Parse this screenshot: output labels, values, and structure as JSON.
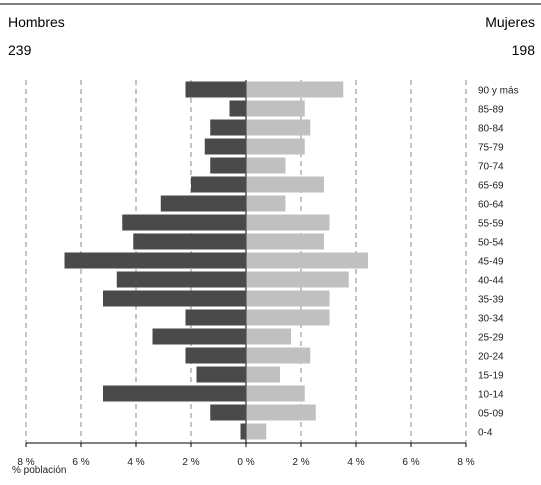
{
  "header": {
    "left_title": "Hombres",
    "left_total": "239",
    "right_title": "Mujeres",
    "right_total": "198"
  },
  "chart_data": {
    "type": "bar",
    "orientation": "horizontal-population-pyramid",
    "categories": [
      "90 y más",
      "85-89",
      "80-84",
      "75-79",
      "70-74",
      "65-69",
      "60-64",
      "55-59",
      "50-54",
      "45-49",
      "40-44",
      "35-39",
      "30-34",
      "25-29",
      "20-24",
      "15-19",
      "10-14",
      "05-09",
      "0-4"
    ],
    "series": [
      {
        "name": "Hombres",
        "color": "#4a4a4a",
        "side": "left",
        "values": [
          2.2,
          0.6,
          1.3,
          1.5,
          1.3,
          2.0,
          3.1,
          4.5,
          4.1,
          6.6,
          4.7,
          5.2,
          2.2,
          3.4,
          2.2,
          1.8,
          5.2,
          1.3,
          0.2
        ]
      },
      {
        "name": "Mujeres",
        "color": "#c0c0c0",
        "side": "right",
        "values": [
          3.5,
          2.1,
          2.3,
          2.1,
          1.4,
          2.8,
          1.4,
          3.0,
          2.8,
          4.4,
          3.7,
          3.0,
          3.0,
          1.6,
          2.3,
          1.2,
          2.1,
          2.5,
          0.7
        ]
      }
    ],
    "xticks": [
      "8 %",
      "6 %",
      "4 %",
      "2 %",
      "0 %",
      "2 %",
      "4 %",
      "6 %",
      "8 %"
    ],
    "xlim": [
      -8,
      8
    ],
    "xlabel": "% población",
    "grid": "vertical-dashed"
  }
}
